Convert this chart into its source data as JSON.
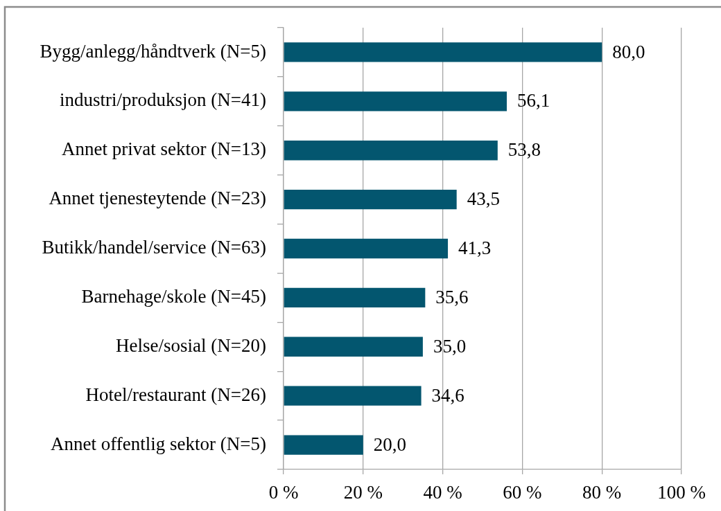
{
  "chart_data": {
    "type": "bar",
    "orientation": "horizontal",
    "categories": [
      "Bygg/anlegg/håndtverk (N=5)",
      "industri/produksjon (N=41)",
      "Annet privat sektor (N=13)",
      "Annet tjenesteytende (N=23)",
      "Butikk/handel/service (N=63)",
      "Barnehage/skole (N=45)",
      "Helse/sosial (N=20)",
      "Hotel/restaurant (N=26)",
      "Annet offentlig sektor (N=5)"
    ],
    "values": [
      80.0,
      56.1,
      53.8,
      43.5,
      41.3,
      35.6,
      35.0,
      34.6,
      20.0
    ],
    "value_labels": [
      "80,0",
      "56,1",
      "53,8",
      "43,5",
      "41,3",
      "35,6",
      "35,0",
      "34,6",
      "20,0"
    ],
    "color": "#03566f",
    "xlim": [
      0,
      100
    ],
    "xticks": [
      {
        "value": 0,
        "label": "0 %"
      },
      {
        "value": 20,
        "label": "20 %"
      },
      {
        "value": 40,
        "label": "40 %"
      },
      {
        "value": 60,
        "label": "60 %"
      },
      {
        "value": 80,
        "label": "80 %"
      },
      {
        "value": 100,
        "label": "100 %"
      }
    ],
    "grid": "x"
  }
}
